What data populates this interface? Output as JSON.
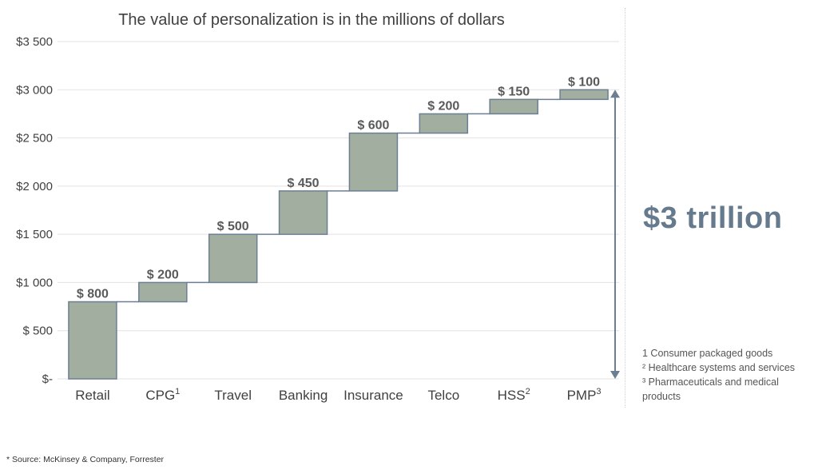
{
  "title": "The value of personalization is in the millions of dollars",
  "total_label": "$3 trillion",
  "footnotes": [
    "1 Consumer packaged goods",
    "² Healthcare systems and services",
    "³ Pharmaceuticals and medical products"
  ],
  "source": "* Source: McKinsey & Company, Forrester",
  "colors": {
    "bar_fill": "#a2afa0",
    "bar_stroke": "#6c7f92",
    "connector": "#6c7f92",
    "arrow": "#6c7f92",
    "grid": "#e2e2e2",
    "big_text": "#667a8e"
  },
  "chart_data": {
    "type": "bar",
    "subtype": "waterfall",
    "categories": [
      "Retail",
      "CPG",
      "Travel",
      "Banking",
      "Insurance",
      "Telco",
      "HSS",
      "PMP"
    ],
    "category_superscripts": [
      "",
      "1",
      "",
      "",
      "",
      "",
      "2",
      "3"
    ],
    "values": [
      800,
      200,
      500,
      450,
      600,
      200,
      150,
      100
    ],
    "data_labels": [
      "$ 800",
      "$ 200",
      "$ 500",
      "$ 450",
      "$ 600",
      "$ 200",
      "$ 150",
      "$ 100"
    ],
    "ylim": [
      0,
      3500
    ],
    "yticks": [
      0,
      500,
      1000,
      1500,
      2000,
      2500,
      3000,
      3500
    ],
    "ytick_labels": [
      "$-",
      "$ 500",
      "$1 000",
      "$1 500",
      "$2 000",
      "$2 500",
      "$3 000",
      "$3 500"
    ],
    "grid": true,
    "total_arrow_range": [
      0,
      3000
    ]
  }
}
